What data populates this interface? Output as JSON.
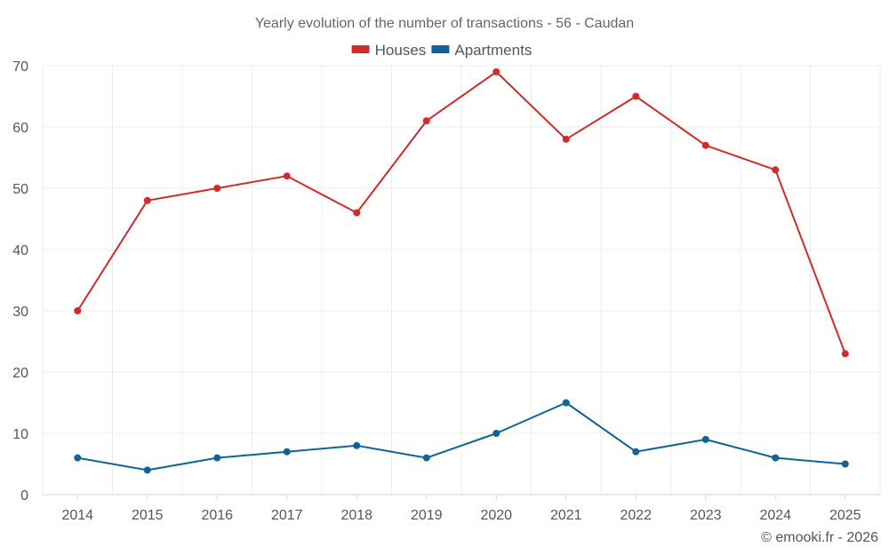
{
  "chart_data": {
    "type": "line",
    "title": "Yearly evolution of the number of transactions - 56 - Caudan",
    "categories": [
      "2014",
      "2015",
      "2016",
      "2017",
      "2018",
      "2019",
      "2020",
      "2021",
      "2022",
      "2023",
      "2024",
      "2025"
    ],
    "series": [
      {
        "name": "Houses",
        "color": "#d32a2a",
        "values": [
          30,
          48,
          50,
          52,
          46,
          61,
          69,
          58,
          65,
          57,
          53,
          23
        ]
      },
      {
        "name": "Apartments",
        "color": "#0e6496",
        "values": [
          6,
          4,
          6,
          7,
          8,
          6,
          10,
          15,
          7,
          9,
          6,
          5
        ]
      }
    ],
    "ylim": [
      0,
      70
    ],
    "yticks": [
      0,
      10,
      20,
      30,
      40,
      50,
      60,
      70
    ],
    "xlabel": "",
    "ylabel": "",
    "grid": true,
    "legend": "top-center"
  },
  "footer": {
    "credit": "© emooki.fr - 2026"
  }
}
